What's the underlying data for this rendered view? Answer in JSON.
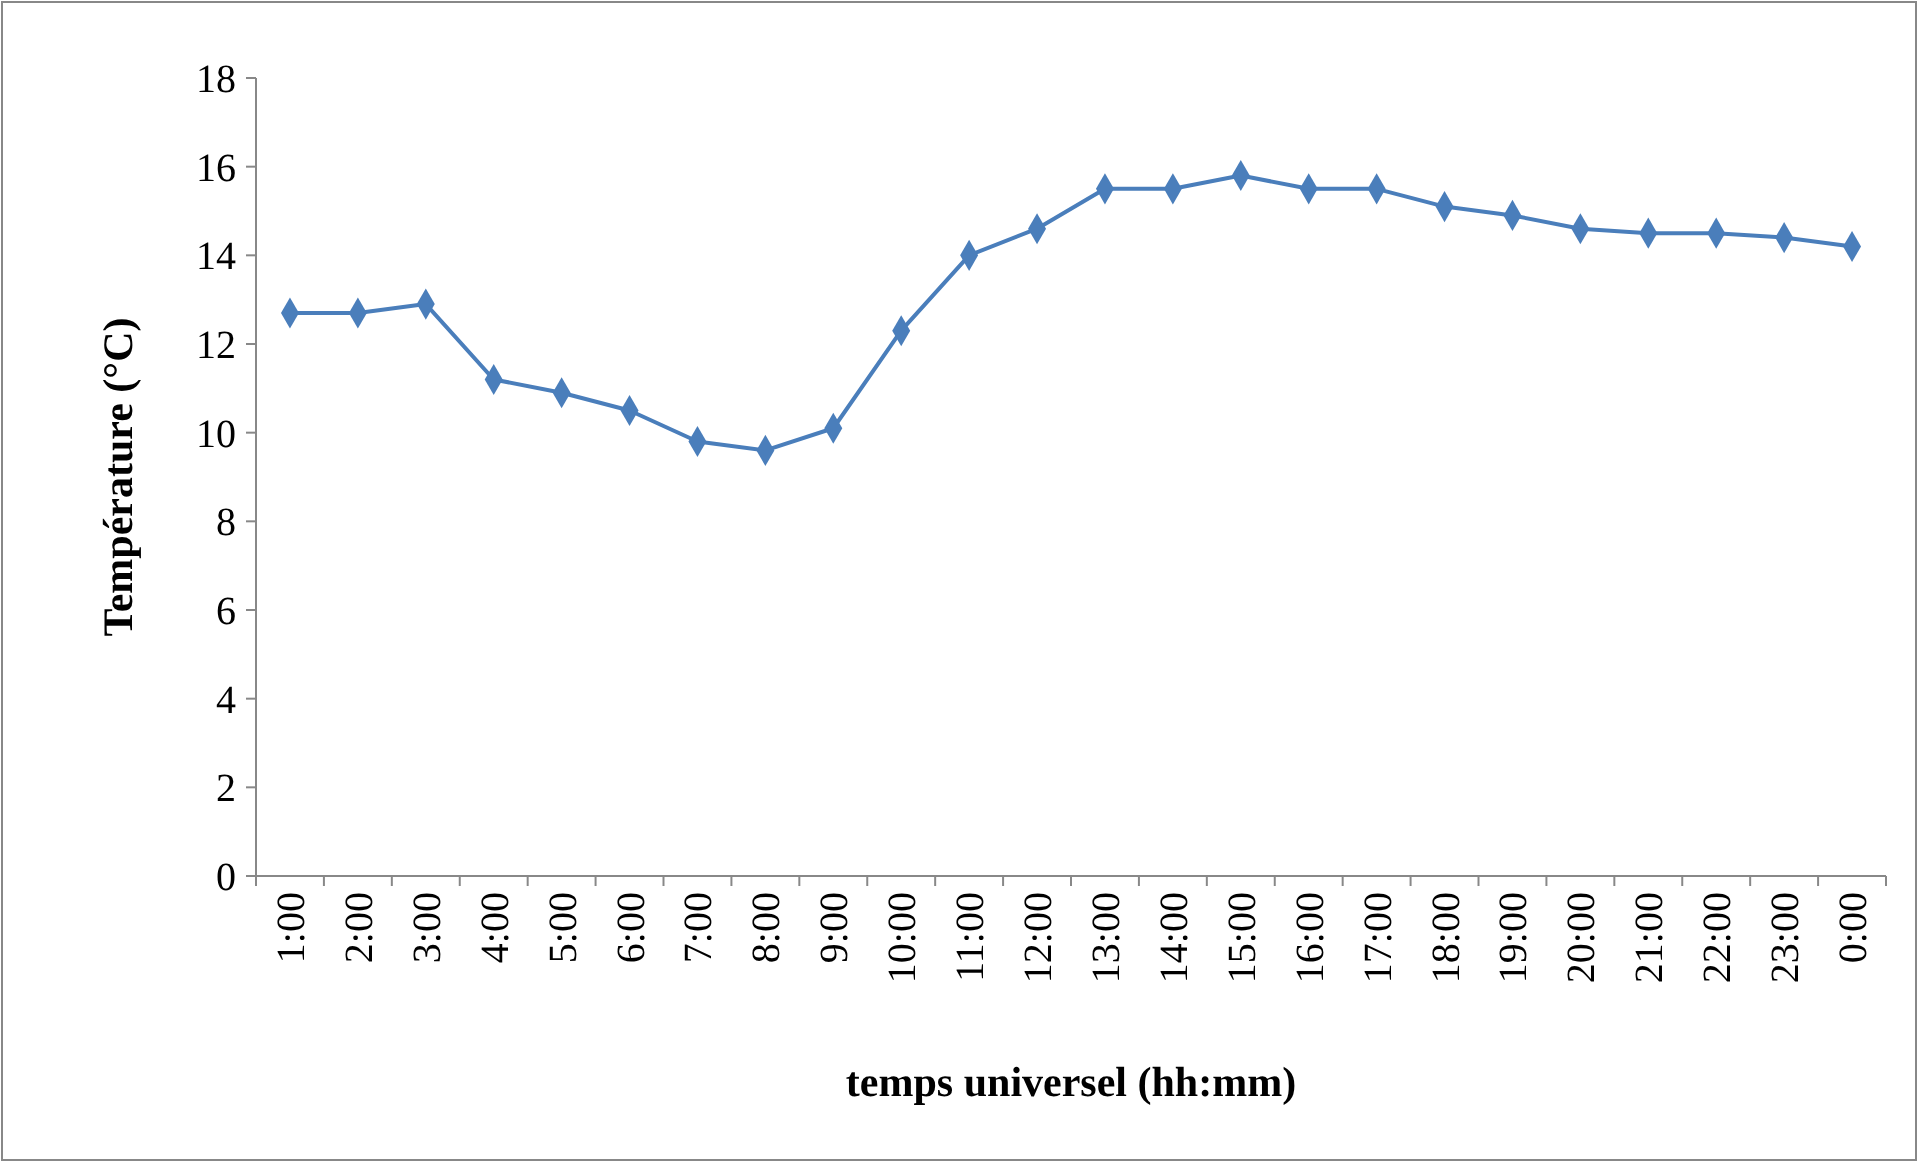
{
  "chart_data": {
    "type": "line",
    "xlabel": "temps universel (hh:mm)",
    "ylabel": "Température (°C)",
    "categories": [
      "1:00",
      "2:00",
      "3:00",
      "4:00",
      "5:00",
      "6:00",
      "7:00",
      "8:00",
      "9:00",
      "10:00",
      "11:00",
      "12:00",
      "13:00",
      "14:00",
      "15:00",
      "16:00",
      "17:00",
      "18:00",
      "19:00",
      "20:00",
      "21:00",
      "22:00",
      "23:00",
      "0:00"
    ],
    "series": [
      {
        "color": "#4a7ebb",
        "values": [
          12.7,
          12.7,
          12.9,
          11.2,
          10.9,
          10.5,
          9.8,
          9.6,
          10.1,
          12.3,
          14.0,
          14.6,
          15.5,
          15.5,
          15.8,
          15.5,
          15.5,
          15.1,
          14.9,
          14.6,
          14.5,
          14.5,
          14.4,
          14.2
        ]
      }
    ],
    "ylim": [
      0,
      18
    ],
    "yticks": [
      0,
      2,
      4,
      6,
      8,
      10,
      12,
      14,
      16,
      18
    ],
    "grid": false,
    "marker": "diamond",
    "line_style": "solid"
  }
}
